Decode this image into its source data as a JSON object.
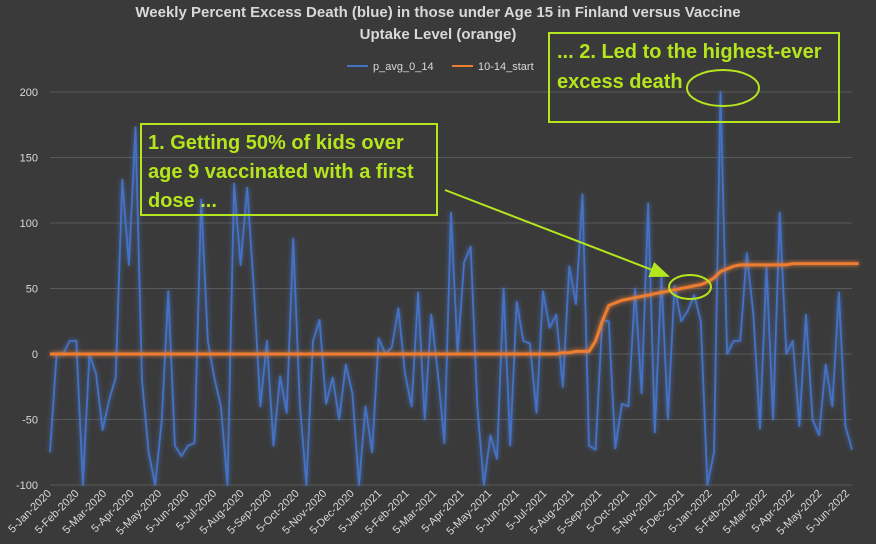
{
  "chart_data": {
    "type": "line",
    "title_lines": [
      "Weekly Percent Excess Death (blue) in those under Age 15 in Finland versus Vaccine",
      "Uptake Level (orange)"
    ],
    "ylim": [
      -100,
      200
    ],
    "yticks": [
      -100,
      -50,
      0,
      50,
      100,
      150,
      200
    ],
    "xticks": [
      "5-Jan-2020",
      "5-Feb-2020",
      "5-Mar-2020",
      "5-Apr-2020",
      "5-May-2020",
      "5-Jun-2020",
      "5-Jul-2020",
      "5-Aug-2020",
      "5-Sep-2020",
      "5-Oct-2020",
      "5-Nov-2020",
      "5-Dec-2020",
      "5-Jan-2021",
      "5-Feb-2021",
      "5-Mar-2021",
      "5-Apr-2021",
      "5-May-2021",
      "5-Jun-2021",
      "5-Jul-2021",
      "5-Aug-2021",
      "5-Sep-2021",
      "5-Oct-2021",
      "5-Nov-2021",
      "5-Dec-2021",
      "5-Jan-2022",
      "5-Feb-2022",
      "5-Mar-2022",
      "5-Apr-2022",
      "5-May-2022",
      "5-Jun-2022"
    ],
    "legend_position": "top",
    "series": [
      {
        "name": "p_avg_0_14",
        "color": "#4472c4",
        "values": [
          -75,
          0,
          0,
          10,
          10,
          -100,
          0,
          -15,
          -58,
          -35,
          -18,
          133,
          68,
          173,
          -20,
          -75,
          -100,
          -50,
          48,
          -70,
          -78,
          -70,
          -68,
          118,
          10,
          -18,
          -40,
          -100,
          130,
          68,
          127,
          50,
          -40,
          10,
          -70,
          -17,
          -45,
          88,
          -38,
          -100,
          10,
          26,
          -38,
          -18,
          -50,
          -8,
          -30,
          -100,
          -40,
          -75,
          12,
          0,
          5,
          35,
          -15,
          -40,
          47,
          -50,
          30,
          -15,
          -68,
          108,
          0,
          70,
          82,
          -40,
          -100,
          -62,
          -80,
          50,
          -70,
          40,
          10,
          8,
          -45,
          48,
          20,
          30,
          -25,
          67,
          38,
          122,
          -70,
          -73,
          26,
          25,
          -72,
          -38,
          -40,
          50,
          -30,
          115,
          -60,
          60,
          -50,
          52,
          25,
          33,
          45,
          25,
          -100,
          -75,
          200,
          0,
          10,
          10,
          77,
          30,
          -57,
          67,
          -50,
          108,
          0,
          10,
          -55,
          30,
          -50,
          -62,
          -8,
          -40,
          47,
          -55,
          -73
        ]
      },
      {
        "name": "10-14_start",
        "color": "#ed7d31",
        "values": [
          0,
          0,
          0,
          0,
          0,
          0,
          0,
          0,
          0,
          0,
          0,
          0,
          0,
          0,
          0,
          0,
          0,
          0,
          0,
          0,
          0,
          0,
          0,
          0,
          0,
          0,
          0,
          0,
          0,
          0,
          0,
          0,
          0,
          0,
          0,
          0,
          0,
          0,
          0,
          0,
          0,
          0,
          0,
          0,
          0,
          0,
          0,
          0,
          0,
          0,
          0,
          0,
          0,
          0,
          0,
          0,
          0,
          0,
          0,
          0,
          0,
          0,
          0,
          0,
          0,
          0,
          0,
          0,
          0,
          0,
          0,
          0,
          0,
          0,
          0,
          0,
          0,
          0,
          1,
          1,
          2,
          2,
          2,
          10,
          25,
          37,
          39,
          41,
          42,
          43,
          44,
          45,
          46,
          47,
          48,
          49,
          50,
          51,
          52,
          53,
          55,
          58,
          63,
          65,
          67,
          68,
          68,
          68,
          68,
          68,
          68,
          68,
          68,
          69,
          69,
          69,
          69,
          69,
          69,
          69,
          69,
          69,
          69,
          69
        ]
      }
    ],
    "annotations": [
      {
        "id": "annot1",
        "lines": [
          "1. Getting 50% of kids over",
          "age 9 vaccinated with a first",
          "dose ..."
        ]
      },
      {
        "id": "annot2",
        "lines": [
          "... 2. Led to the highest-ever",
          "excess death"
        ]
      }
    ]
  },
  "colors": {
    "background": "#3a3a3a",
    "annotation": "#b5e61d"
  }
}
